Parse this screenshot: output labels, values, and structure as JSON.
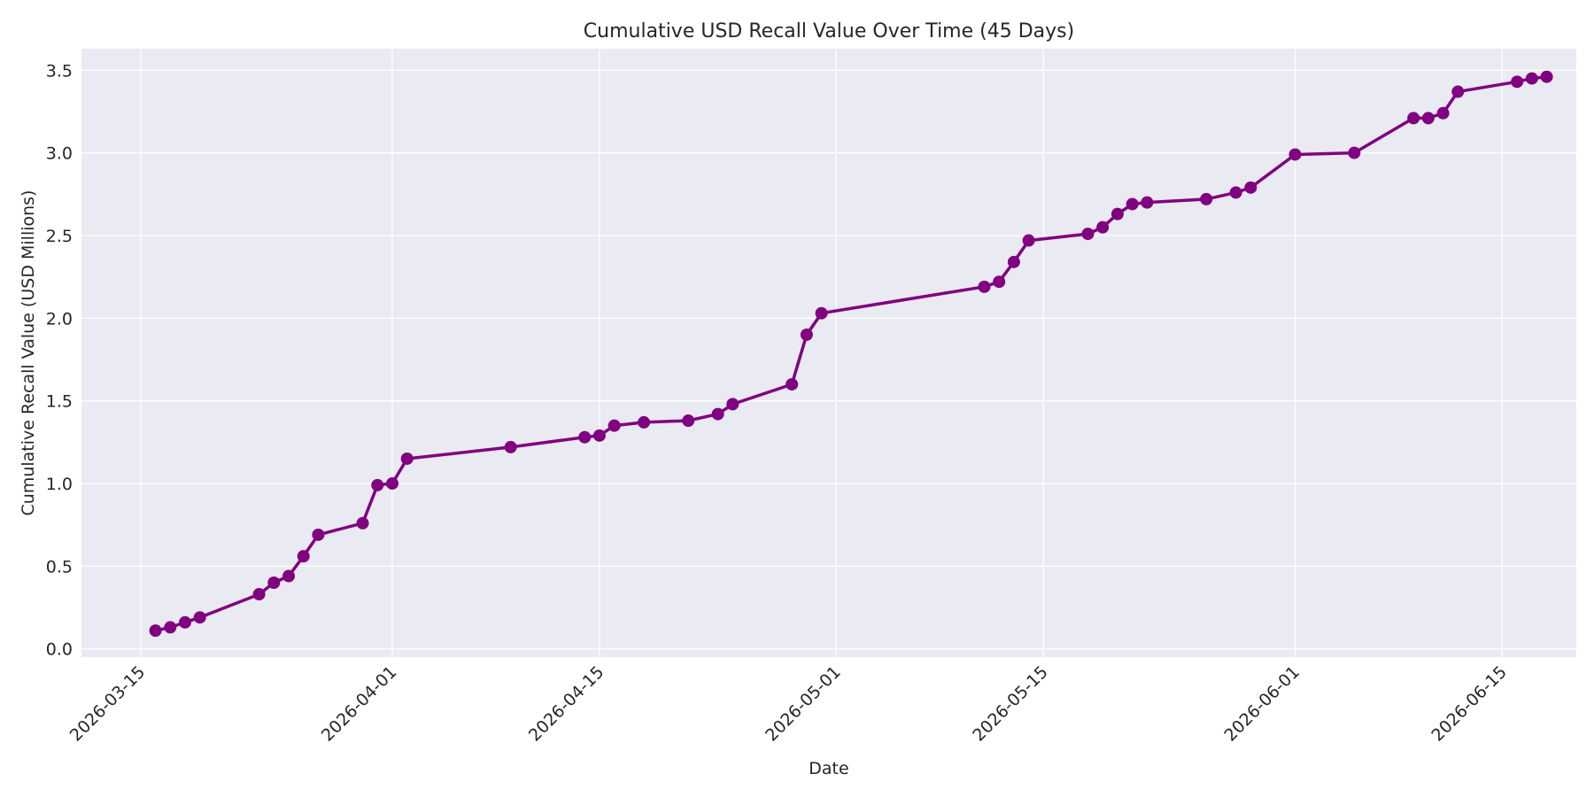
{
  "chart_data": {
    "type": "line",
    "title": "Cumulative USD Recall Value Over Time (45 Days)",
    "xlabel": "Date",
    "ylabel": "Cumulative Recall Value (USD Millions)",
    "xlim": [
      "2026-03-11",
      "2026-06-20"
    ],
    "ylim": [
      -0.05,
      3.63
    ],
    "x_ticks": [
      "2026-03-15",
      "2026-04-01",
      "2026-04-15",
      "2026-05-01",
      "2026-05-15",
      "2026-06-01",
      "2026-06-15"
    ],
    "y_ticks": [
      0.0,
      0.5,
      1.0,
      1.5,
      2.0,
      2.5,
      3.0,
      3.5
    ],
    "y_tick_labels": [
      "0.0",
      "0.5",
      "1.0",
      "1.5",
      "2.0",
      "2.5",
      "3.0",
      "3.5"
    ],
    "grid": true,
    "colors": {
      "series": "#800080",
      "plot_background": "#eaeaf2",
      "grid": "#ffffff"
    },
    "series": [
      {
        "x": [
          "2026-03-16",
          "2026-03-17",
          "2026-03-18",
          "2026-03-19",
          "2026-03-23",
          "2026-03-24",
          "2026-03-25",
          "2026-03-26",
          "2026-03-27",
          "2026-03-30",
          "2026-03-31",
          "2026-04-01",
          "2026-04-02",
          "2026-04-09",
          "2026-04-14",
          "2026-04-15",
          "2026-04-16",
          "2026-04-18",
          "2026-04-21",
          "2026-04-23",
          "2026-04-24",
          "2026-04-28",
          "2026-04-29",
          "2026-04-30",
          "2026-05-11",
          "2026-05-12",
          "2026-05-13",
          "2026-05-14",
          "2026-05-18",
          "2026-05-19",
          "2026-05-20",
          "2026-05-21",
          "2026-05-22",
          "2026-05-26",
          "2026-05-28",
          "2026-05-29",
          "2026-06-01",
          "2026-06-05",
          "2026-06-09",
          "2026-06-10",
          "2026-06-11",
          "2026-06-12",
          "2026-06-16",
          "2026-06-17",
          "2026-06-18"
        ],
        "values": [
          0.11,
          0.13,
          0.16,
          0.19,
          0.33,
          0.4,
          0.44,
          0.56,
          0.69,
          0.76,
          0.99,
          1.0,
          1.15,
          1.22,
          1.28,
          1.29,
          1.35,
          1.37,
          1.38,
          1.42,
          1.48,
          1.6,
          1.9,
          2.03,
          2.19,
          2.22,
          2.34,
          2.47,
          2.51,
          2.55,
          2.63,
          2.69,
          2.7,
          2.72,
          2.76,
          2.79,
          2.99,
          3.0,
          3.21,
          3.21,
          3.24,
          3.37,
          3.43,
          3.45,
          3.46
        ]
      }
    ]
  }
}
